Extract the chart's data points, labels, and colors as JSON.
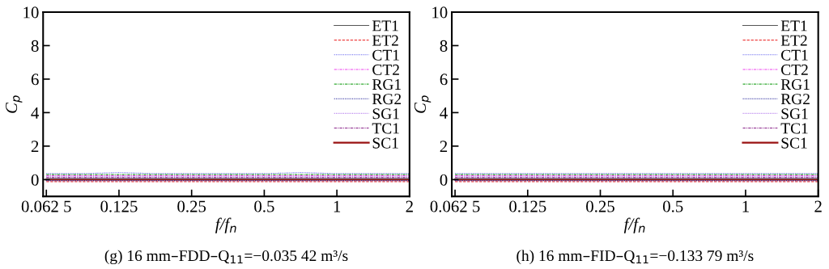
{
  "chart_data": [
    {
      "type": "line",
      "title": "(g) 16 mm–FDD–Q$_{11}$=−0.035 42 m³/s",
      "xlabel": "f/f$_{n}$",
      "ylabel": "C$_{p}$",
      "log": "x",
      "legend": "top right",
      "grid": false,
      "x": [
        0.0625,
        0.088,
        0.125,
        0.177,
        0.25,
        0.35,
        0.5,
        0.71,
        1,
        1.41,
        2
      ],
      "xlim": [
        0.0606,
        2
      ],
      "xticks": [
        {
          "value": 0.0625,
          "label": "0.062 5"
        },
        0.125,
        0.25,
        0.5,
        1,
        2
      ],
      "ylim": [
        -1,
        10
      ],
      "yticks": [
        0,
        2,
        4,
        6,
        8,
        10
      ],
      "series": [
        {
          "name": "ET1",
          "color": "#555555",
          "line_style": "solid",
          "values": [
            0.06,
            0.06,
            0.06,
            0.06,
            0.06,
            0.06,
            0.06,
            0.06,
            0.06,
            0.06,
            0.06
          ]
        },
        {
          "name": "ET2",
          "color": "#ee4444",
          "line_style": "dashed",
          "values": [
            -0.12,
            -0.12,
            -0.12,
            -0.12,
            -0.12,
            -0.12,
            -0.12,
            -0.12,
            -0.12,
            -0.12,
            -0.12
          ]
        },
        {
          "name": "CT1",
          "color": "#6666ee",
          "line_style": "dotted",
          "values": [
            0.36,
            0.36,
            0.42,
            0.36,
            0.36,
            0.36,
            0.36,
            0.42,
            0.36,
            0.36,
            0.36
          ]
        },
        {
          "name": "CT2",
          "color": "#ee44ee",
          "line_style": "dashdot",
          "values": [
            0.24,
            0.24,
            0.24,
            0.24,
            0.24,
            0.24,
            0.24,
            0.24,
            0.24,
            0.24,
            0.24
          ]
        },
        {
          "name": "RG1",
          "color": "#33aa33",
          "line_style": "dashdot",
          "values": [
            0.3,
            0.3,
            0.3,
            0.3,
            0.3,
            0.3,
            0.3,
            0.3,
            0.3,
            0.3,
            0.3
          ]
        },
        {
          "name": "RG2",
          "color": "#222299",
          "line_style": "dotted",
          "values": [
            -0.06,
            -0.06,
            -0.06,
            -0.06,
            -0.06,
            -0.06,
            -0.06,
            -0.06,
            -0.06,
            -0.06,
            -0.06
          ]
        },
        {
          "name": "SG1",
          "color": "#bb88ee",
          "line_style": "dotted",
          "values": [
            0.18,
            0.18,
            0.18,
            0.18,
            0.18,
            0.18,
            0.18,
            0.18,
            0.18,
            0.18,
            0.18
          ]
        },
        {
          "name": "TC1",
          "color": "#882288",
          "line_style": "dashdot",
          "values": [
            0.12,
            0.12,
            0.12,
            0.12,
            0.12,
            0.12,
            0.12,
            0.12,
            0.12,
            0.12,
            0.12
          ]
        },
        {
          "name": "SC1",
          "color": "#991111",
          "line_style": "solid",
          "values": [
            0.0,
            0.0,
            0.0,
            0.0,
            0.0,
            0.0,
            0.0,
            0.0,
            0.0,
            0.0,
            0.0
          ]
        }
      ]
    },
    {
      "type": "line",
      "title": "(h) 16 mm–FID–Q$_{11}$=−0.133 79 m³/s",
      "xlabel": "f/f$_{n}$",
      "ylabel": "C$_{p}$",
      "log": "x",
      "legend": "top right",
      "grid": false,
      "x": [
        0.0625,
        0.088,
        0.125,
        0.177,
        0.25,
        0.35,
        0.5,
        0.71,
        1,
        1.41,
        2
      ],
      "xlim": [
        0.0606,
        2
      ],
      "xticks": [
        {
          "value": 0.0625,
          "label": "0.062 5"
        },
        0.125,
        0.25,
        0.5,
        1,
        2
      ],
      "ylim": [
        -1,
        10
      ],
      "yticks": [
        0,
        2,
        4,
        6,
        8,
        10
      ],
      "series": [
        {
          "name": "ET1",
          "color": "#555555",
          "line_style": "solid",
          "values": [
            0.06,
            0.06,
            0.06,
            0.06,
            0.06,
            0.06,
            0.06,
            0.06,
            0.06,
            0.06,
            0.06
          ]
        },
        {
          "name": "ET2",
          "color": "#ee4444",
          "line_style": "dashed",
          "values": [
            -0.12,
            -0.12,
            -0.12,
            -0.12,
            -0.12,
            -0.12,
            -0.12,
            -0.12,
            -0.12,
            -0.12,
            -0.12
          ]
        },
        {
          "name": "CT1",
          "color": "#6666ee",
          "line_style": "dotted",
          "values": [
            0.36,
            0.36,
            0.36,
            0.36,
            0.36,
            0.36,
            0.36,
            0.36,
            0.36,
            0.36,
            0.36
          ]
        },
        {
          "name": "CT2",
          "color": "#ee44ee",
          "line_style": "dashdot",
          "values": [
            0.24,
            0.24,
            0.24,
            0.24,
            0.24,
            0.24,
            0.24,
            0.24,
            0.24,
            0.24,
            0.24
          ]
        },
        {
          "name": "RG1",
          "color": "#33aa33",
          "line_style": "dashdot",
          "values": [
            0.3,
            0.3,
            0.3,
            0.3,
            0.3,
            0.3,
            0.3,
            0.3,
            0.3,
            0.3,
            0.3
          ]
        },
        {
          "name": "RG2",
          "color": "#222299",
          "line_style": "dotted",
          "values": [
            -0.06,
            -0.06,
            -0.06,
            -0.06,
            -0.06,
            -0.06,
            -0.06,
            -0.06,
            -0.06,
            -0.06,
            -0.06
          ]
        },
        {
          "name": "SG1",
          "color": "#bb88ee",
          "line_style": "dotted",
          "values": [
            0.18,
            0.18,
            0.18,
            0.18,
            0.18,
            0.18,
            0.18,
            0.18,
            0.18,
            0.18,
            0.18
          ]
        },
        {
          "name": "TC1",
          "color": "#882288",
          "line_style": "dashdot",
          "values": [
            0.12,
            0.12,
            0.12,
            0.12,
            0.12,
            0.12,
            0.12,
            0.12,
            0.12,
            0.12,
            0.12
          ]
        },
        {
          "name": "SC1",
          "color": "#991111",
          "line_style": "solid",
          "values": [
            0.0,
            0.0,
            0.0,
            0.0,
            0.0,
            0.0,
            0.0,
            0.0,
            0.0,
            0.0,
            0.0
          ]
        }
      ]
    }
  ]
}
